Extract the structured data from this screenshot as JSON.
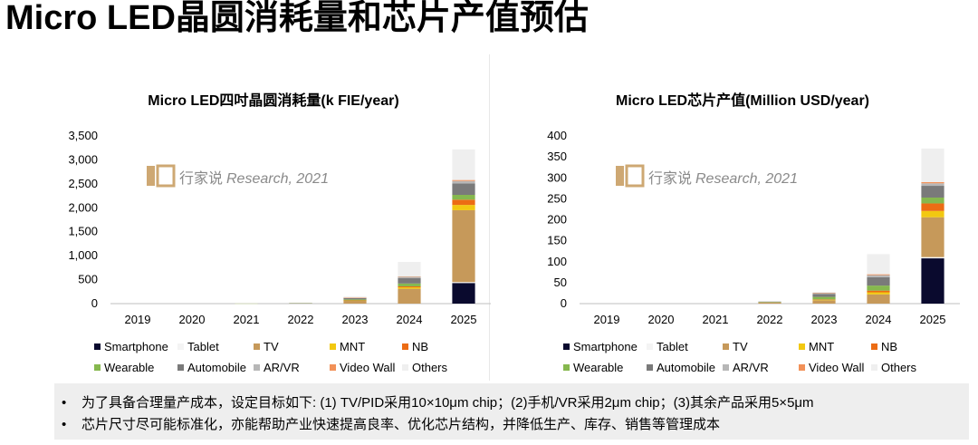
{
  "page": {
    "title": "Micro LED晶圆消耗量和芯片产值预估"
  },
  "watermark": {
    "logo_text": "i■",
    "text": "行家说",
    "text_italic": "Research, 2021"
  },
  "colors": {
    "Smartphone": "#0a0a2e",
    "Tablet": "#f4f4f4",
    "TV": "#c6995a",
    "MNT": "#f2c811",
    "NB": "#ec6c14",
    "Wearable": "#86b84e",
    "Automobile": "#7a7a7a",
    "AR/VR": "#b7b7b7",
    "Video Wall": "#f29158",
    "Others": "#efefef"
  },
  "legend_rows": [
    [
      "Smartphone",
      "Tablet",
      "TV",
      "MNT",
      "NB"
    ],
    [
      "Wearable",
      "Automobile",
      "AR/VR",
      "Video Wall",
      "Others"
    ]
  ],
  "chart_data": [
    {
      "type": "bar",
      "stacked": true,
      "title": "Micro LED四吋晶圆消耗量(k FIE/year)",
      "categories": [
        "2019",
        "2020",
        "2021",
        "2022",
        "2023",
        "2024",
        "2025"
      ],
      "ylim": [
        0,
        3500
      ],
      "yticks": [
        "0",
        "500",
        "1,000",
        "1,500",
        "2,000",
        "2,500",
        "3,000",
        "3,500"
      ],
      "ytick_values": [
        0,
        500,
        1000,
        1500,
        2000,
        2500,
        3000,
        3500
      ],
      "grid": false,
      "legend_position": "bottom",
      "series": [
        {
          "name": "Smartphone",
          "values": [
            0,
            0,
            0,
            0,
            0,
            0,
            430
          ]
        },
        {
          "name": "Tablet",
          "values": [
            0,
            0,
            0,
            0,
            0,
            0,
            20
          ]
        },
        {
          "name": "TV",
          "values": [
            0,
            0,
            2,
            10,
            60,
            310,
            1500
          ]
        },
        {
          "name": "MNT",
          "values": [
            0,
            0,
            0,
            0,
            5,
            30,
            110
          ]
        },
        {
          "name": "NB",
          "values": [
            0,
            0,
            0,
            0,
            3,
            20,
            110
          ]
        },
        {
          "name": "Wearable",
          "values": [
            0,
            0,
            1,
            3,
            20,
            60,
            100
          ]
        },
        {
          "name": "Automobile",
          "values": [
            0,
            0,
            0,
            2,
            30,
            110,
            240
          ]
        },
        {
          "name": "AR/VR",
          "values": [
            0,
            0,
            0,
            0,
            5,
            30,
            50
          ]
        },
        {
          "name": "Video Wall",
          "values": [
            0,
            0,
            0,
            0,
            2,
            10,
            20
          ]
        },
        {
          "name": "Others",
          "values": [
            0,
            0,
            1,
            5,
            25,
            300,
            640
          ]
        }
      ]
    },
    {
      "type": "bar",
      "stacked": true,
      "title": "Micro LED芯片产值(Million USD/year)",
      "categories": [
        "2019",
        "2020",
        "2021",
        "2022",
        "2023",
        "2024",
        "2025"
      ],
      "ylim": [
        0,
        400
      ],
      "yticks": [
        "0",
        "50",
        "100",
        "150",
        "200",
        "250",
        "300",
        "350",
        "400"
      ],
      "ytick_values": [
        0,
        50,
        100,
        150,
        200,
        250,
        300,
        350,
        400
      ],
      "grid": false,
      "legend_position": "bottom",
      "series": [
        {
          "name": "Smartphone",
          "values": [
            0,
            0,
            0,
            0,
            0,
            0,
            108
          ]
        },
        {
          "name": "Tablet",
          "values": [
            0,
            0,
            0,
            0,
            0,
            0,
            3
          ]
        },
        {
          "name": "TV",
          "values": [
            0,
            0,
            0,
            3,
            8,
            22,
            95
          ]
        },
        {
          "name": "MNT",
          "values": [
            0,
            0,
            0,
            0,
            1,
            5,
            15
          ]
        },
        {
          "name": "NB",
          "values": [
            0,
            0,
            0,
            0,
            1,
            4,
            18
          ]
        },
        {
          "name": "Wearable",
          "values": [
            0,
            0,
            0,
            1,
            6,
            12,
            14
          ]
        },
        {
          "name": "Automobile",
          "values": [
            0,
            0,
            0,
            1,
            7,
            20,
            28
          ]
        },
        {
          "name": "AR/VR",
          "values": [
            0,
            0,
            0,
            0,
            2,
            5,
            6
          ]
        },
        {
          "name": "Video Wall",
          "values": [
            0,
            0,
            0,
            0,
            1,
            2,
            3
          ]
        },
        {
          "name": "Others",
          "values": [
            0,
            0,
            0,
            1,
            2,
            48,
            80
          ]
        }
      ]
    }
  ],
  "notes": [
    "为了具备合理量产成本，设定目标如下: (1) TV/PID采用10×10μm chip；(2)手机/VR采用2μm chip；(3)其余产品采用5×5μm",
    "芯片尺寸尽可能标准化，亦能帮助产业快速提高良率、优化芯片结构，并降低生产、库存、销售等管理成本"
  ]
}
